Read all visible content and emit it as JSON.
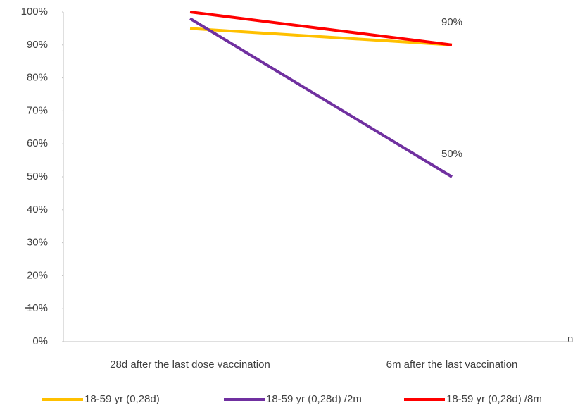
{
  "chart_data": {
    "type": "line",
    "categories": [
      "28d after the last dose vaccination",
      "6m after the last vaccination"
    ],
    "series": [
      {
        "name": "18-59 yr (0,28d)",
        "color": "#ffc000",
        "values": [
          95,
          90
        ]
      },
      {
        "name": "18-59 yr (0,28d) /2m",
        "color": "#7030a0",
        "values": [
          98,
          50
        ],
        "value_labels": [
          null,
          "50%"
        ]
      },
      {
        "name": "18-59 yr (0,28d) /8m",
        "color": "#ff0000",
        "values": [
          100,
          90
        ],
        "value_labels": [
          null,
          "90%"
        ]
      }
    ],
    "ylim": [
      0,
      100
    ],
    "yticks": [
      {
        "value": 0,
        "label": "0%"
      },
      {
        "value": 10,
        "label": "10%"
      },
      {
        "value": 20,
        "label": "20%"
      },
      {
        "value": 30,
        "label": "30%"
      },
      {
        "value": 40,
        "label": "40%"
      },
      {
        "value": 50,
        "label": "50%"
      },
      {
        "value": 60,
        "label": "60%"
      },
      {
        "value": 70,
        "label": "70%"
      },
      {
        "value": 80,
        "label": "80%"
      },
      {
        "value": 90,
        "label": "90%"
      },
      {
        "value": 100,
        "label": "100%"
      }
    ],
    "grid": false,
    "legend": "bottom",
    "annotations": [
      "n"
    ]
  }
}
